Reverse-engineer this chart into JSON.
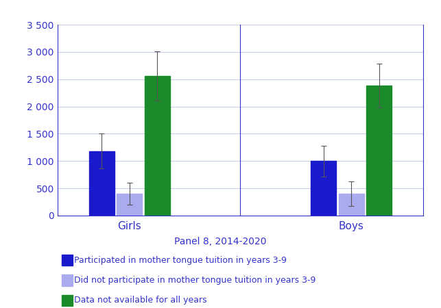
{
  "groups": [
    "Girls",
    "Boys"
  ],
  "bar_labels": [
    "Participated in mother tongue tuition in years 3-9",
    "Did not participate in mother tongue tuition in years 3-9",
    "Data not available for all years"
  ],
  "values": {
    "Girls": [
      1180,
      400,
      2560
    ],
    "Boys": [
      1000,
      400,
      2380
    ]
  },
  "errors": {
    "Girls": [
      320,
      200,
      450
    ],
    "Boys": [
      280,
      230,
      400
    ]
  },
  "colors": [
    "#1a1acc",
    "#aaaaee",
    "#1a8a2a"
  ],
  "ylim": [
    0,
    3500
  ],
  "yticks": [
    0,
    500,
    1000,
    1500,
    2000,
    2500,
    3000,
    3500
  ],
  "ytick_labels": [
    "0",
    "500",
    "1 000",
    "1 500",
    "2 000",
    "2 500",
    "3 000",
    "3 500"
  ],
  "panel_label": "Panel 8, 2014-2020",
  "label_color": "#3333cc",
  "background_color": "#ffffff",
  "grid_color": "#c8d0e8",
  "bar_width": 0.25,
  "figsize": [
    6.43,
    4.5
  ],
  "dpi": 100
}
